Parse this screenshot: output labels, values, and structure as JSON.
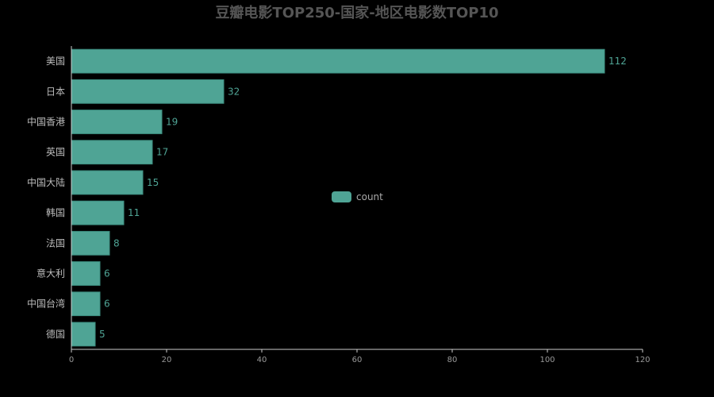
{
  "chart_data": {
    "type": "bar",
    "orientation": "horizontal",
    "title": "豆瓣电影TOP250-国家-地区电影数TOP10",
    "categories": [
      "美国",
      "日本",
      "中国香港",
      "英国",
      "中国大陆",
      "韩国",
      "法国",
      "意大利",
      "中国台湾",
      "德国"
    ],
    "series": [
      {
        "name": "count",
        "values": [
          112,
          32,
          19,
          17,
          15,
          11,
          8,
          6,
          6,
          5
        ]
      }
    ],
    "xlim": [
      0,
      120
    ],
    "xticks": [
      0,
      20,
      40,
      60,
      80,
      100,
      120
    ],
    "grid": false,
    "legend_position": "center",
    "data_labels": true,
    "colors": {
      "bar": "#4fa495",
      "bar_border": "#3c8e80",
      "data_label": "#4fa495",
      "axis": "#cccccc",
      "background": "#000000"
    }
  }
}
